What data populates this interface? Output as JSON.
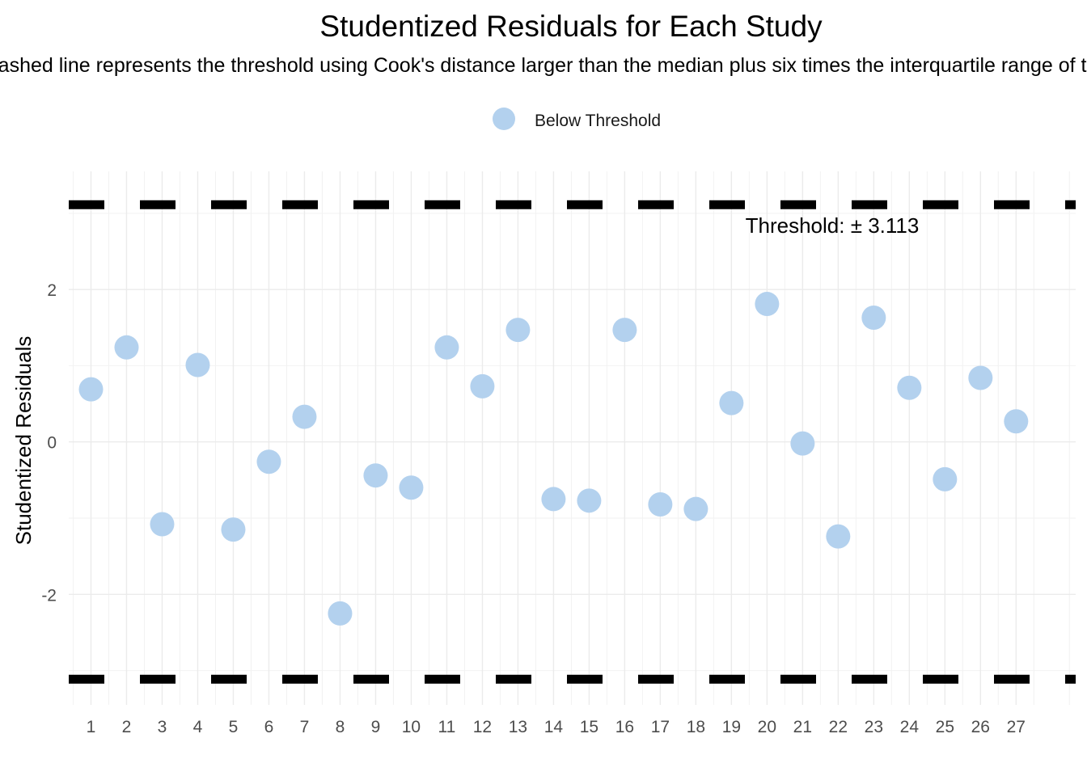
{
  "chart_data": {
    "type": "scatter",
    "title": "Studentized Residuals for Each Study",
    "subtitle": "The dashed line represents the threshold using Cook's distance larger than the median plus six times the interquartile range of the residuals",
    "xlabel": "",
    "ylabel": "Studentized Residuals",
    "ylim": [
      -3.45,
      3.55
    ],
    "yticks": [
      -2,
      0,
      2
    ],
    "grid": true,
    "legend": {
      "position": "top",
      "entries": [
        {
          "label": "Below Threshold",
          "color": "#b3d1ee"
        }
      ]
    },
    "threshold": 3.113,
    "threshold_label": "Threshold: ± 3.113",
    "categories": [
      "1",
      "2",
      "3",
      "4",
      "5",
      "6",
      "7",
      "8",
      "9",
      "10",
      "11",
      "12",
      "13",
      "14",
      "15",
      "16",
      "17",
      "18",
      "19",
      "20",
      "21",
      "22",
      "23",
      "24",
      "25",
      "26",
      "27"
    ],
    "series": [
      {
        "name": "Below Threshold",
        "color": "#b3d1ee",
        "values": [
          0.69,
          1.24,
          -1.08,
          1.01,
          -1.15,
          -0.26,
          0.33,
          -2.25,
          -0.44,
          -0.6,
          1.24,
          0.73,
          1.47,
          -0.75,
          -0.77,
          1.47,
          -0.82,
          -0.88,
          0.51,
          1.81,
          -0.02,
          -1.24,
          1.63,
          0.71,
          -0.49,
          0.84,
          0.27
        ]
      }
    ]
  }
}
